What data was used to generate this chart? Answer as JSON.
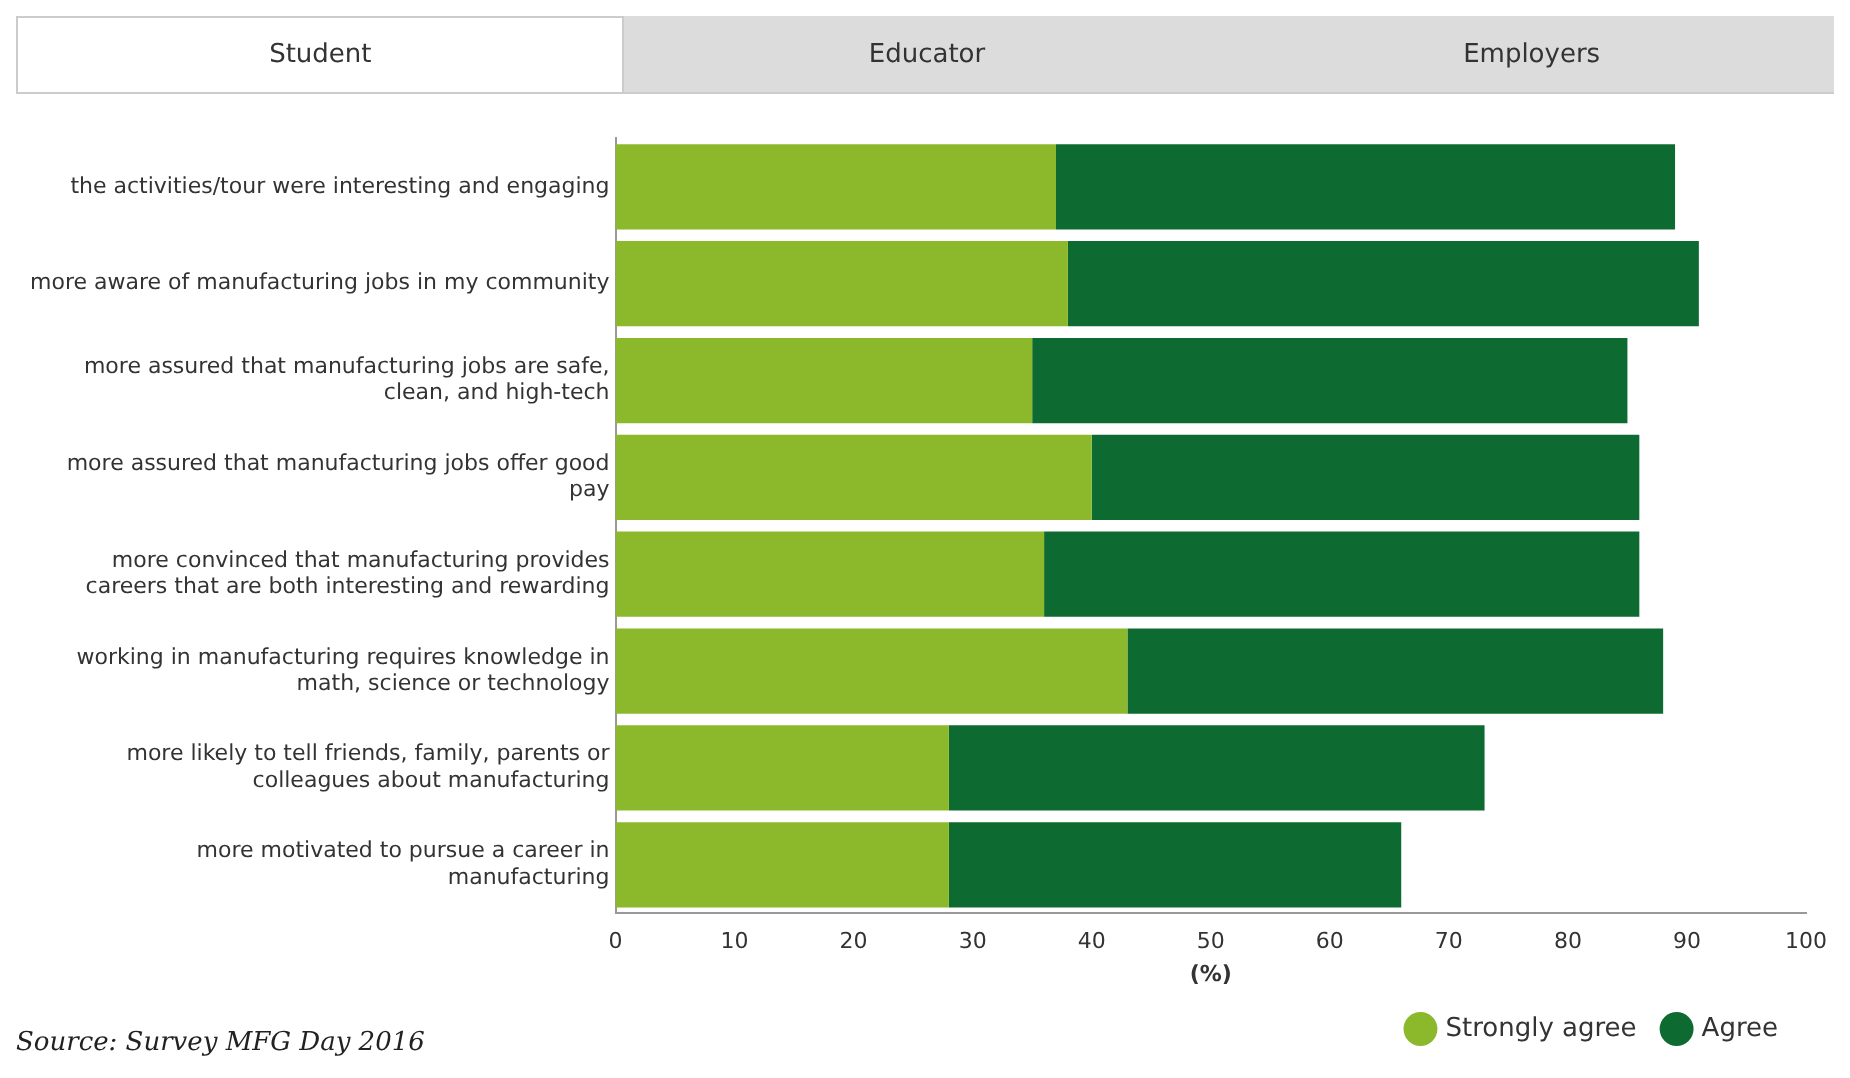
{
  "chart_data": {
    "type": "bar",
    "orientation": "horizontal",
    "stacked": true,
    "xlabel": "(%)",
    "categories": [
      "the activities/tour were interesting and engaging",
      "more aware of manufacturing jobs in my community",
      "more assured that manufacturing jobs are safe, clean, and high-tech",
      "more assured that manufacturing jobs offer good pay",
      "more convinced that manufacturing provides careers that are both interesting and rewarding",
      "working in manufacturing requires knowledge in math, science or technology",
      "more likely to tell friends, family, parents or colleagues about manufacturing",
      "more motivated to pursue a career in manufacturing"
    ],
    "series": [
      {
        "name": "Strongly agree",
        "color": "#8cb82b",
        "values": [
          37,
          38,
          35,
          40,
          36,
          43,
          28,
          28
        ]
      },
      {
        "name": "Agree",
        "color": "#0d6b32",
        "values": [
          52,
          53,
          50,
          46,
          50,
          45,
          45,
          38
        ]
      }
    ],
    "xlim": [
      0,
      100
    ],
    "xticks": [
      0,
      10,
      20,
      30,
      40,
      50,
      60,
      70,
      80,
      90,
      100
    ],
    "grid": false,
    "legend": "bottom right",
    "annotations": [
      "Student",
      "Educator",
      "Employers",
      "Source: Survey MFG Day 2016"
    ]
  }
}
